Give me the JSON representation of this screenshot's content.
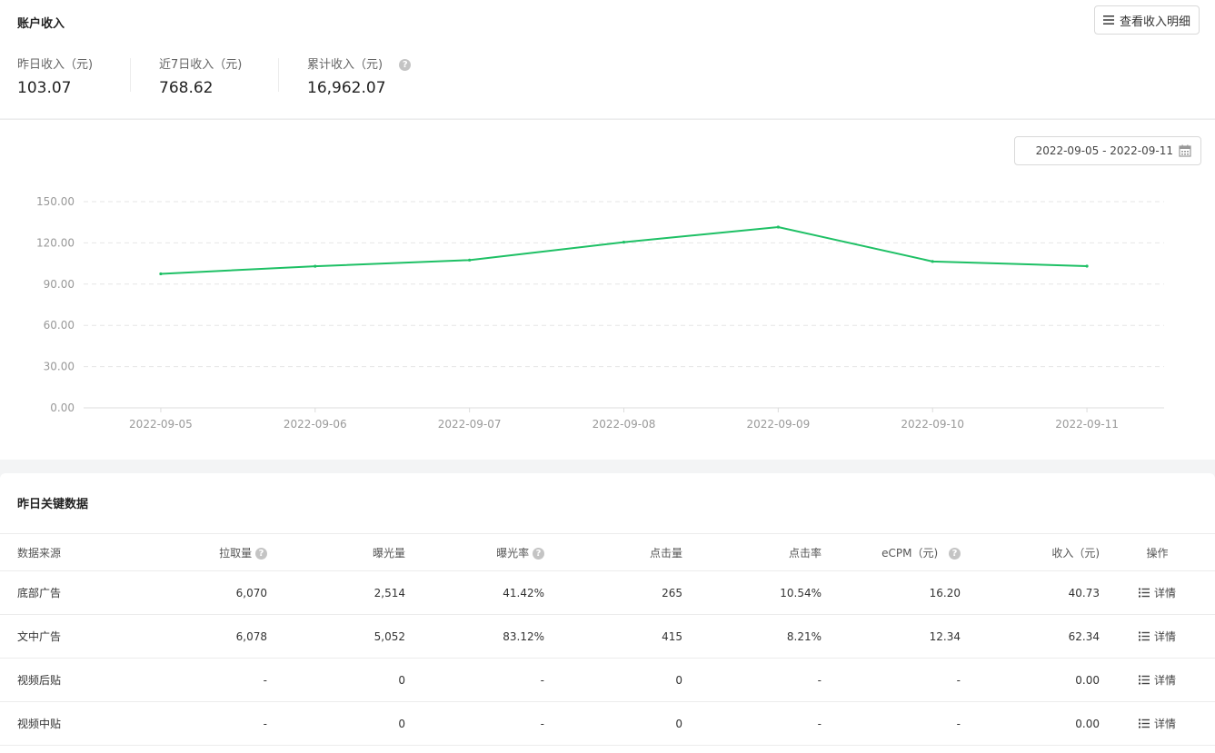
{
  "account": {
    "title": "账户收入",
    "detail_button": "查看收入明细",
    "stats": [
      {
        "label": "昨日收入（元)",
        "value": "103.07"
      },
      {
        "label": "近7日收入（元)",
        "value": "768.62"
      },
      {
        "label": "累计收入（元)",
        "value": "16,962.07"
      }
    ],
    "help_glyph": "?"
  },
  "date_range": "2022-09-05 - 2022-09-11",
  "chart_data": {
    "type": "line",
    "x": [
      "2022-09-05",
      "2022-09-06",
      "2022-09-07",
      "2022-09-08",
      "2022-09-09",
      "2022-09-10",
      "2022-09-11"
    ],
    "series": [
      {
        "values": [
          97.5,
          103.0,
          107.5,
          120.5,
          131.5,
          106.5,
          103.07
        ],
        "color": "#1ec065"
      }
    ],
    "yticks": [
      "0.00",
      "30.00",
      "60.00",
      "90.00",
      "120.00",
      "150.00"
    ],
    "ylim": [
      0,
      150
    ],
    "grid": true
  },
  "keydata": {
    "title": "昨日关键数据",
    "headers": [
      "数据来源",
      "拉取量",
      "曝光量",
      "曝光率",
      "点击量",
      "点击率",
      "eCPM（元)",
      "收入（元)",
      "操作"
    ],
    "rows": [
      {
        "source": "底部广告",
        "pull": "6,070",
        "exposure": "2,514",
        "exposure_rate": "41.42%",
        "clicks": "265",
        "ctr": "10.54%",
        "ecpm": "16.20",
        "revenue": "40.73",
        "action": "详情"
      },
      {
        "source": "文中广告",
        "pull": "6,078",
        "exposure": "5,052",
        "exposure_rate": "83.12%",
        "clicks": "415",
        "ctr": "8.21%",
        "ecpm": "12.34",
        "revenue": "62.34",
        "action": "详情"
      },
      {
        "source": "视频后贴",
        "pull": "-",
        "exposure": "0",
        "exposure_rate": "-",
        "clicks": "0",
        "ctr": "-",
        "ecpm": "-",
        "revenue": "0.00",
        "action": "详情"
      },
      {
        "source": "视频中贴",
        "pull": "-",
        "exposure": "0",
        "exposure_rate": "-",
        "clicks": "0",
        "ctr": "-",
        "ecpm": "-",
        "revenue": "0.00",
        "action": "详情"
      }
    ]
  },
  "icons": {
    "menu": "menu-icon",
    "calendar": "calendar-icon",
    "list": "list-icon",
    "help": "help-icon"
  }
}
